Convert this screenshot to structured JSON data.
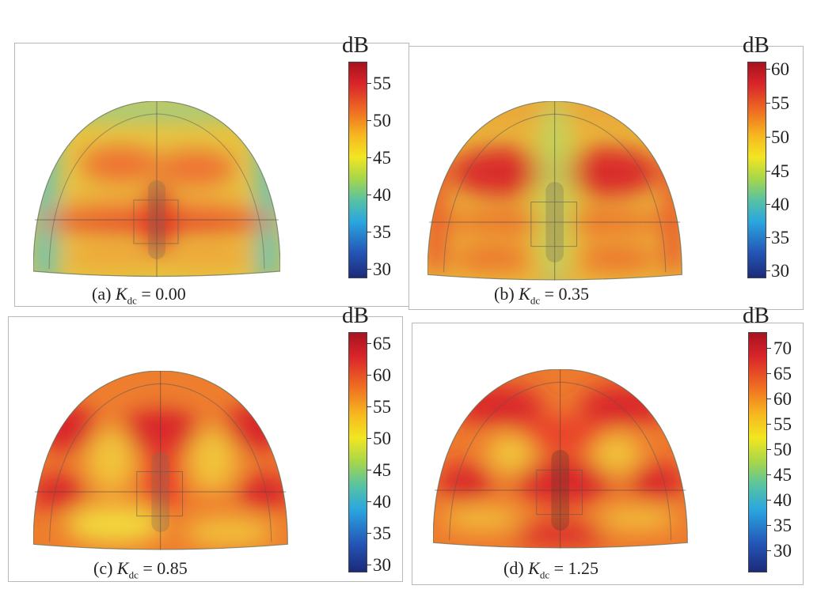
{
  "panels": [
    {
      "unit": "dB",
      "ticks": [
        "55",
        "50",
        "45",
        "40",
        "35",
        "30"
      ],
      "caption_prefix": "(a) ",
      "var": "K",
      "sub": "dc",
      "caption_value": " = 0.00"
    },
    {
      "unit": "dB",
      "ticks": [
        "60",
        "55",
        "50",
        "45",
        "40",
        "35",
        "30"
      ],
      "caption_prefix": "(b) ",
      "var": "K",
      "sub": "dc",
      "caption_value": " = 0.35"
    },
    {
      "unit": "dB",
      "ticks": [
        "65",
        "60",
        "55",
        "50",
        "45",
        "40",
        "35",
        "30"
      ],
      "caption_prefix": "(c) ",
      "var": "K",
      "sub": "dc",
      "caption_value": " = 0.85"
    },
    {
      "unit": "dB",
      "ticks": [
        "70",
        "65",
        "60",
        "55",
        "50",
        "45",
        "40",
        "35",
        "30"
      ],
      "caption_prefix": "(d) ",
      "var": "K",
      "sub": "dc",
      "caption_value": " = 1.25"
    }
  ]
}
